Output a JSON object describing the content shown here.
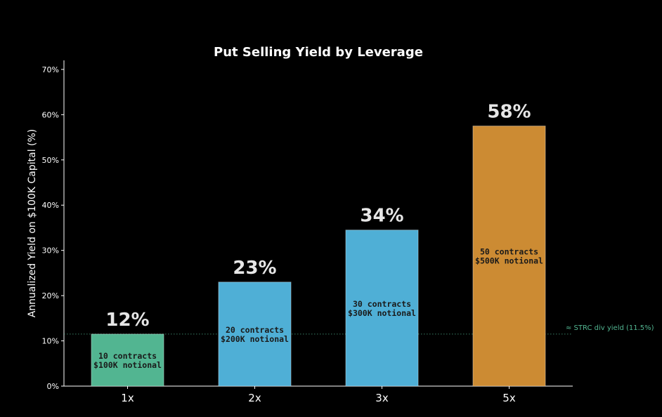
{
  "chart_data": {
    "type": "bar",
    "title": "Put Selling Yield by Leverage",
    "xlabel": "",
    "ylabel": "Annualized Yield on $100K Capital (%)",
    "ylim": [
      0,
      72
    ],
    "yticks": [
      0,
      10,
      20,
      30,
      40,
      50,
      60,
      70
    ],
    "ytick_suffix": "%",
    "categories": [
      "1x",
      "2x",
      "3x",
      "5x"
    ],
    "values": [
      11.5,
      23.0,
      34.5,
      57.5
    ],
    "value_labels": [
      "12%",
      "23%",
      "34%",
      "58%"
    ],
    "bar_text": [
      [
        "10 contracts",
        "$100K notional"
      ],
      [
        "20 contracts",
        "$200K notional"
      ],
      [
        "30 contracts",
        "$300K notional"
      ],
      [
        "50 contracts",
        "$500K notional"
      ]
    ],
    "bar_colors": [
      "#52b591",
      "#4fafd6",
      "#4fafd6",
      "#cc8b33"
    ],
    "reference_line": {
      "value": 11.5,
      "label": "≈ STRC div yield (11.5%)",
      "color": "#52b591",
      "style": "dotted"
    },
    "grid": false,
    "legend": "none"
  }
}
